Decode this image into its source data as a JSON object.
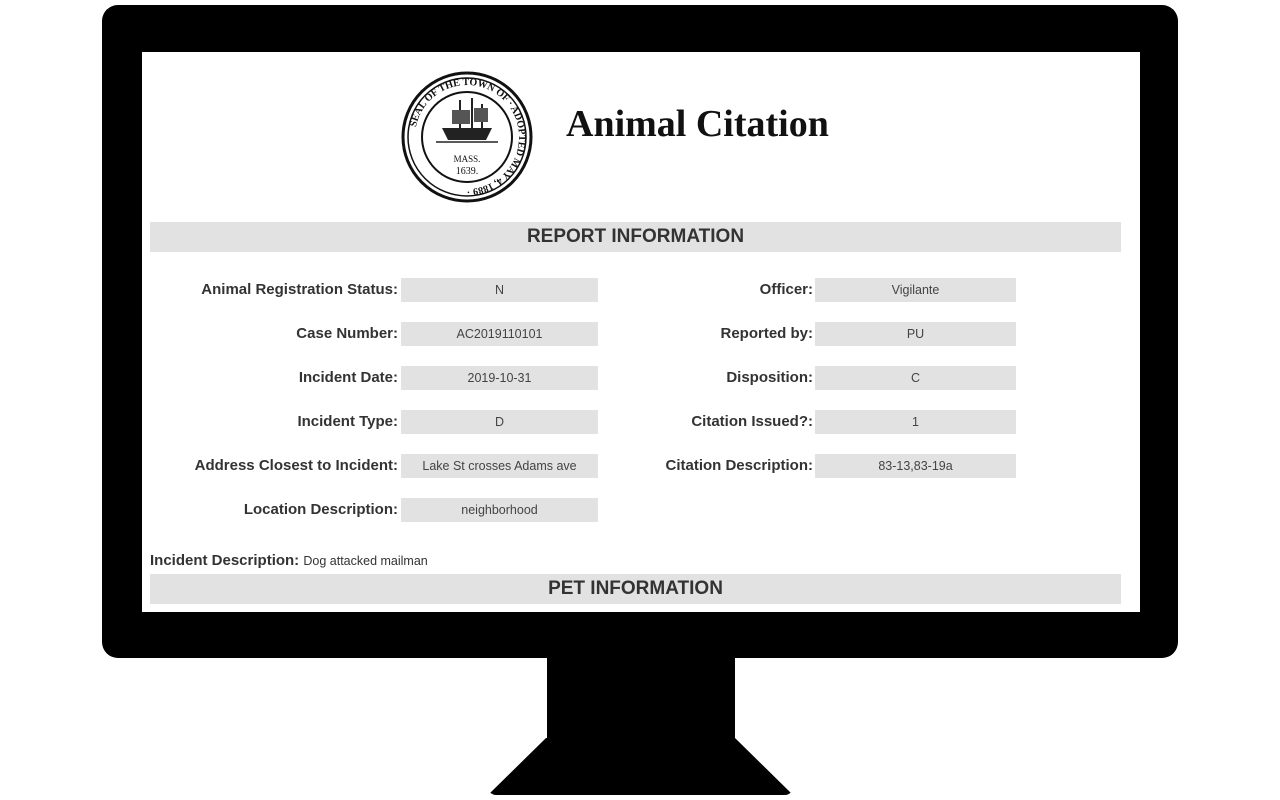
{
  "page": {
    "title": "Animal Citation",
    "seal": {
      "text": "SEAL OF THE TOWN OF MASS. 1639. ADOPTED MAY 4, 1889"
    }
  },
  "report_section": {
    "heading": "REPORT INFORMATION",
    "left_fields": [
      {
        "label": "Animal Registration Status:",
        "value": "N"
      },
      {
        "label": "Case Number:",
        "value": "AC2019110101"
      },
      {
        "label": "Incident Date:",
        "value": "2019-10-31"
      },
      {
        "label": "Incident Type:",
        "value": "D"
      },
      {
        "label": "Address Closest to Incident:",
        "value": "Lake St crosses Adams ave"
      },
      {
        "label": "Location Description:",
        "value": "neighborhood"
      }
    ],
    "right_fields": [
      {
        "label": "Officer:",
        "value": "Vigilante"
      },
      {
        "label": "Reported by:",
        "value": "PU"
      },
      {
        "label": "Disposition:",
        "value": "C"
      },
      {
        "label": "Citation Issued?:",
        "value": "1"
      },
      {
        "label": "Citation Description:",
        "value": "83-13,83-19a"
      }
    ],
    "incident_description": {
      "label": "Incident Description:",
      "value": "Dog attacked mailman"
    }
  },
  "pet_section": {
    "heading": "PET INFORMATION"
  }
}
